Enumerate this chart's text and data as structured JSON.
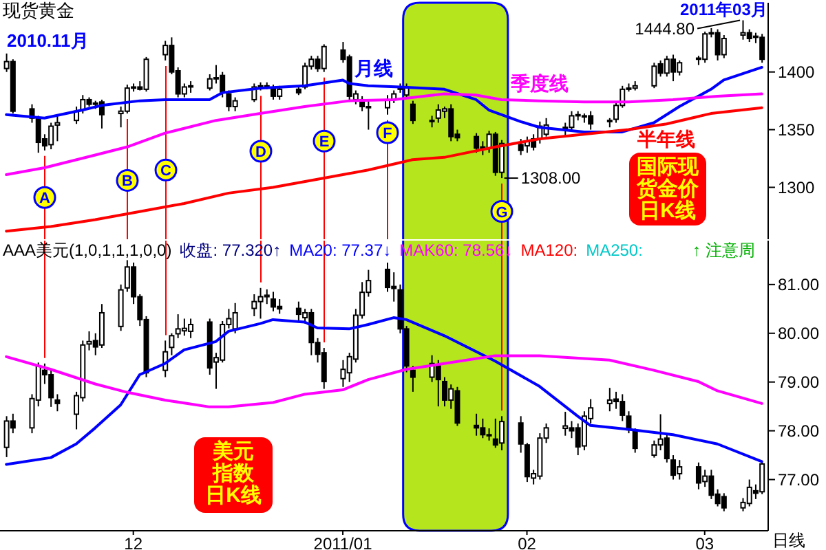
{
  "chart_data": [
    {
      "type": "candlestick",
      "title": "现货黄金",
      "color": "#000000",
      "x": [
        "2010-11-11",
        "2010-11-12",
        "2010-11-15",
        "2010-11-16",
        "2010-11-17",
        "2010-11-18",
        "2010-11-19",
        "2010-11-22",
        "2010-11-23",
        "2010-11-24",
        "2010-11-25",
        "2010-11-26",
        "2010-11-29",
        "2010-11-30",
        "2010-12-01",
        "2010-12-02",
        "2010-12-03",
        "2010-12-06",
        "2010-12-07",
        "2010-12-08",
        "2010-12-09",
        "2010-12-10",
        "2010-12-13",
        "2010-12-14",
        "2010-12-15",
        "2010-12-16",
        "2010-12-17",
        "2010-12-20",
        "2010-12-21",
        "2010-12-22",
        "2010-12-23",
        "2010-12-24",
        "2010-12-27",
        "2010-12-28",
        "2010-12-29",
        "2010-12-30",
        "2010-12-31",
        "2011-01-03",
        "2011-01-04",
        "2011-01-05",
        "2011-01-06",
        "2011-01-07",
        "2011-01-10",
        "2011-01-11",
        "2011-01-12",
        "2011-01-13",
        "2011-01-14",
        "2011-01-17",
        "2011-01-18",
        "2011-01-19",
        "2011-01-20",
        "2011-01-21",
        "2011-01-24",
        "2011-01-25",
        "2011-01-26",
        "2011-01-27",
        "2011-01-28",
        "2011-01-31",
        "2011-02-01",
        "2011-02-02",
        "2011-02-03",
        "2011-02-04",
        "2011-02-07",
        "2011-02-08",
        "2011-02-09",
        "2011-02-10",
        "2011-02-11",
        "2011-02-14",
        "2011-02-15",
        "2011-02-16",
        "2011-02-17",
        "2011-02-18",
        "2011-02-21",
        "2011-02-22",
        "2011-02-23",
        "2011-02-24",
        "2011-02-25",
        "2011-02-28",
        "2011-03-01",
        "2011-03-02",
        "2011-03-03",
        "2011-03-04",
        "2011-03-07",
        "2011-03-08",
        "2011-03-09",
        "2011-03-10"
      ],
      "ohlc": [
        [
          1403,
          1416,
          1400,
          1409
        ],
        [
          1409,
          1411,
          1364,
          1366
        ],
        [
          1368,
          1372,
          1356,
          1360
        ],
        [
          1360,
          1362,
          1330,
          1339
        ],
        [
          1342,
          1346,
          1332,
          1336
        ],
        [
          1337,
          1356,
          1333,
          1353
        ],
        [
          1354,
          1362,
          1340,
          1356
        ],
        [
          1358,
          1370,
          1355,
          1366
        ],
        [
          1367,
          1380,
          1364,
          1376
        ],
        [
          1376,
          1378,
          1370,
          1372
        ],
        [
          1372,
          1375,
          1368,
          1373
        ],
        [
          1374,
          1376,
          1351,
          1363
        ],
        [
          1364,
          1370,
          1352,
          1366
        ],
        [
          1366,
          1389,
          1364,
          1386
        ],
        [
          1387,
          1390,
          1383,
          1386
        ],
        [
          1387,
          1392,
          1384,
          1385
        ],
        [
          1385,
          1413,
          1383,
          1411
        ],
        [
          1415,
          1427,
          1410,
          1423
        ],
        [
          1423,
          1430,
          1398,
          1400
        ],
        [
          1401,
          1404,
          1378,
          1381
        ],
        [
          1381,
          1390,
          1378,
          1387
        ],
        [
          1387,
          1392,
          1382,
          1388
        ],
        [
          1386,
          1398,
          1384,
          1394
        ],
        [
          1394,
          1406,
          1390,
          1395
        ],
        [
          1397,
          1400,
          1378,
          1382
        ],
        [
          1381,
          1384,
          1366,
          1370
        ],
        [
          1370,
          1378,
          1366,
          1375
        ],
        [
          1376,
          1390,
          1374,
          1387
        ],
        [
          1387,
          1391,
          1384,
          1388
        ],
        [
          1388,
          1391,
          1385,
          1387
        ],
        [
          1386,
          1389,
          1376,
          1379
        ],
        [
          1379,
          1388,
          1376,
          1385
        ],
        [
          1385,
          1387,
          1380,
          1382
        ],
        [
          1387,
          1408,
          1385,
          1405
        ],
        [
          1405,
          1414,
          1402,
          1411
        ],
        [
          1411,
          1414,
          1400,
          1403
        ],
        [
          1403,
          1424,
          1400,
          1422
        ],
        [
          1419,
          1426,
          1408,
          1411
        ],
        [
          1413,
          1415,
          1376,
          1379
        ],
        [
          1376,
          1384,
          1372,
          1381
        ],
        [
          1376,
          1379,
          1366,
          1370
        ],
        [
          1370,
          1376,
          1350,
          1369
        ],
        [
          1369,
          1380,
          1363,
          1376
        ],
        [
          1376,
          1384,
          1373,
          1381
        ],
        [
          1385,
          1390,
          1382,
          1386
        ],
        [
          1380,
          1390,
          1377,
          1387
        ],
        [
          1372,
          1375,
          1355,
          1358
        ],
        [
          1358,
          1362,
          1352,
          1357
        ],
        [
          1360,
          1372,
          1356,
          1367
        ],
        [
          1366,
          1370,
          1360,
          1368
        ],
        [
          1368,
          1372,
          1340,
          1344
        ],
        [
          1346,
          1350,
          1340,
          1343
        ],
        [
          1344,
          1347,
          1330,
          1334
        ],
        [
          1334,
          1340,
          1328,
          1335
        ],
        [
          1334,
          1349,
          1330,
          1346
        ],
        [
          1346,
          1348,
          1310,
          1313
        ],
        [
          1313,
          1341,
          1308,
          1338
        ],
        [
          1337,
          1342,
          1328,
          1332
        ],
        [
          1336,
          1344,
          1330,
          1340
        ],
        [
          1342,
          1346,
          1332,
          1335
        ],
        [
          1342,
          1357,
          1338,
          1353
        ],
        [
          1346,
          1360,
          1344,
          1354
        ],
        [
          1352,
          1356,
          1344,
          1350
        ],
        [
          1352,
          1366,
          1348,
          1362
        ],
        [
          1362,
          1366,
          1358,
          1363
        ],
        [
          1362,
          1364,
          1356,
          1361
        ],
        [
          1362,
          1366,
          1350,
          1355
        ],
        [
          1357,
          1360,
          1352,
          1358
        ],
        [
          1359,
          1373,
          1356,
          1371
        ],
        [
          1371,
          1388,
          1369,
          1385
        ],
        [
          1385,
          1390,
          1383,
          1386
        ],
        [
          1386,
          1392,
          1384,
          1388
        ],
        [
          1388,
          1408,
          1386,
          1405
        ],
        [
          1407,
          1410,
          1396,
          1399
        ],
        [
          1399,
          1414,
          1396,
          1411
        ],
        [
          1411,
          1415,
          1392,
          1400
        ],
        [
          1400,
          1410,
          1397,
          1408
        ],
        [
          1411,
          1414,
          1406,
          1412
        ],
        [
          1411,
          1435,
          1408,
          1433
        ],
        [
          1433,
          1438,
          1430,
          1434
        ],
        [
          1434,
          1437,
          1410,
          1415
        ],
        [
          1415,
          1432,
          1412,
          1429
        ],
        [
          1432,
          1444.8,
          1428,
          1434
        ],
        [
          1434,
          1437,
          1426,
          1429
        ],
        [
          1430,
          1434,
          1425,
          1431
        ],
        [
          1430,
          1433,
          1408,
          1411
        ]
      ],
      "series": [
        {
          "type": "line",
          "name": "月线",
          "color": "#0000ff",
          "x": [
            "2010-11-11",
            "2010-11-17",
            "2010-11-23",
            "2010-11-26",
            "2010-12-02",
            "2010-12-06",
            "2010-12-13",
            "2010-12-15",
            "2010-12-21",
            "2010-12-28",
            "2011-01-03",
            "2011-01-04",
            "2011-01-07",
            "2011-01-12",
            "2011-01-19",
            "2011-01-24",
            "2011-01-26",
            "2011-01-31",
            "2011-02-03",
            "2011-02-10",
            "2011-02-16",
            "2011-02-21",
            "2011-02-25",
            "2011-03-02",
            "2011-03-04",
            "2011-03-10"
          ],
          "values": [
            1363,
            1360,
            1367,
            1371,
            1375,
            1376,
            1376,
            1382,
            1386,
            1388,
            1393,
            1390,
            1388,
            1387,
            1385,
            1376,
            1367,
            1357,
            1352,
            1348,
            1348,
            1356,
            1370,
            1385,
            1393,
            1404
          ]
        },
        {
          "type": "line",
          "name": "季度线",
          "color": "#ff00ff",
          "x": [
            "2010-11-11",
            "2010-11-17",
            "2010-11-25",
            "2010-11-30",
            "2010-12-06",
            "2010-12-14",
            "2010-12-21",
            "2010-12-28",
            "2011-01-04",
            "2011-01-11",
            "2011-01-19",
            "2011-01-24",
            "2011-01-28",
            "2011-02-03",
            "2011-02-10",
            "2011-02-17",
            "2011-02-24",
            "2011-03-03",
            "2011-03-10"
          ],
          "values": [
            1311,
            1317,
            1328,
            1335,
            1347,
            1358,
            1364,
            1370,
            1375,
            1376,
            1381,
            1380,
            1376,
            1375,
            1374,
            1374,
            1376,
            1379,
            1381
          ]
        },
        {
          "type": "line",
          "name": "半年线",
          "color": "#ff0000",
          "x": [
            "2010-11-11",
            "2010-11-18",
            "2010-11-25",
            "2010-12-02",
            "2010-12-09",
            "2010-12-16",
            "2010-12-23",
            "2010-12-30",
            "2011-01-07",
            "2011-01-14",
            "2011-01-19",
            "2011-01-27",
            "2011-02-03",
            "2011-02-10",
            "2011-02-17",
            "2011-02-23",
            "2011-03-02",
            "2011-03-10"
          ],
          "values": [
            1262,
            1266,
            1272,
            1279,
            1286,
            1295,
            1300,
            1307,
            1315,
            1324,
            1326,
            1335,
            1342,
            1346,
            1350,
            1355,
            1364,
            1369
          ]
        }
      ],
      "xlim": [
        "2010-11-10",
        "2011-03-11"
      ],
      "ylim": [
        1255,
        1460
      ],
      "yticks": [
        1300,
        1350,
        1400
      ],
      "tick_labels": "y",
      "ref_lines": [
        {
          "axis": "x",
          "value": "2010-11-17",
          "label": "A",
          "color": "#ff0000"
        },
        {
          "axis": "x",
          "value": "2010-11-30",
          "label": "B",
          "color": "#ff0000"
        },
        {
          "axis": "x",
          "value": "2010-12-06",
          "label": "C",
          "color": "#ff0000"
        },
        {
          "axis": "x",
          "value": "2010-12-21",
          "label": "D",
          "color": "#ff0000"
        },
        {
          "axis": "x",
          "value": "2010-12-31",
          "label": "E",
          "color": "#ff0000"
        },
        {
          "axis": "x",
          "value": "2011-01-10",
          "label": "F",
          "color": "#ff0000"
        },
        {
          "axis": "x",
          "value": "2011-01-28",
          "label": "G",
          "color": "#ff0000"
        }
      ],
      "bands": [
        {
          "axis": "x",
          "from": "2011-01-12T12:00",
          "to": "2011-01-29",
          "color": "#b5e61d"
        }
      ],
      "annotations": [
        "2010.11月",
        "2011年03月",
        {
          "text": "1444.80",
          "x": "2011-03-07",
          "y": 1444.8
        },
        {
          "text": "1308.00",
          "x": "2011-01-28",
          "y": 1308
        },
        "国际现货金价日K线"
      ]
    },
    {
      "type": "candlestick",
      "title": "AAA美元(1,0,1,1,1,0,0)",
      "color": "#000000",
      "x": [
        "2010-11-11",
        "2010-11-12",
        "2010-11-15",
        "2010-11-16",
        "2010-11-17",
        "2010-11-18",
        "2010-11-19",
        "2010-11-22",
        "2010-11-23",
        "2010-11-24",
        "2010-11-25",
        "2010-11-26",
        "2010-11-29",
        "2010-11-30",
        "2010-12-01",
        "2010-12-02",
        "2010-12-03",
        "2010-12-06",
        "2010-12-07",
        "2010-12-08",
        "2010-12-09",
        "2010-12-10",
        "2010-12-13",
        "2010-12-14",
        "2010-12-15",
        "2010-12-16",
        "2010-12-17",
        "2010-12-20",
        "2010-12-21",
        "2010-12-22",
        "2010-12-23",
        "2010-12-24",
        "2010-12-27",
        "2010-12-28",
        "2010-12-29",
        "2010-12-30",
        "2010-12-31",
        "2011-01-03",
        "2011-01-04",
        "2011-01-05",
        "2011-01-06",
        "2011-01-07",
        "2011-01-10",
        "2011-01-11",
        "2011-01-12",
        "2011-01-13",
        "2011-01-14",
        "2011-01-17",
        "2011-01-18",
        "2011-01-19",
        "2011-01-20",
        "2011-01-21",
        "2011-01-24",
        "2011-01-25",
        "2011-01-26",
        "2011-01-27",
        "2011-01-28",
        "2011-01-31",
        "2011-02-01",
        "2011-02-02",
        "2011-02-03",
        "2011-02-04",
        "2011-02-07",
        "2011-02-08",
        "2011-02-09",
        "2011-02-10",
        "2011-02-11",
        "2011-02-14",
        "2011-02-15",
        "2011-02-16",
        "2011-02-17",
        "2011-02-18",
        "2011-02-21",
        "2011-02-22",
        "2011-02-23",
        "2011-02-24",
        "2011-02-25",
        "2011-02-28",
        "2011-03-01",
        "2011-03-02",
        "2011-03-03",
        "2011-03-04",
        "2011-03-07",
        "2011-03-08",
        "2011-03-09",
        "2011-03-10"
      ],
      "ohlc": [
        [
          77.66,
          78.3,
          77.46,
          78.2
        ],
        [
          78.2,
          78.35,
          77.95,
          78.06
        ],
        [
          78.06,
          78.75,
          77.95,
          78.66
        ],
        [
          78.63,
          79.4,
          78.5,
          79.33
        ],
        [
          79.24,
          79.38,
          78.96,
          79.15
        ],
        [
          79.15,
          79.25,
          78.49,
          78.68
        ],
        [
          78.63,
          78.75,
          78.4,
          78.56
        ],
        [
          78.34,
          78.8,
          78.03,
          78.72
        ],
        [
          78.68,
          79.85,
          78.6,
          79.76
        ],
        [
          79.78,
          80.04,
          79.65,
          79.83
        ],
        [
          79.85,
          80,
          79.55,
          79.72
        ],
        [
          79.76,
          80.6,
          79.7,
          80.42
        ],
        [
          80.14,
          81,
          80.05,
          80.89
        ],
        [
          80.93,
          81.5,
          80.85,
          81.36
        ],
        [
          81.36,
          81.45,
          80.6,
          80.75
        ],
        [
          80.75,
          80.8,
          80.15,
          80.28
        ],
        [
          80.28,
          80.35,
          79.1,
          79.19
        ],
        [
          79.24,
          79.85,
          79.1,
          79.62
        ],
        [
          79.71,
          80,
          79.55,
          79.95
        ],
        [
          79.99,
          80.39,
          79.9,
          80.09
        ],
        [
          80.05,
          80.3,
          79.95,
          80.1
        ],
        [
          80.04,
          80.3,
          79.9,
          80.18
        ],
        [
          80.23,
          80.3,
          79.15,
          79.29
        ],
        [
          79.41,
          79.6,
          78.86,
          79.5
        ],
        [
          79.45,
          80.25,
          79.4,
          80.18
        ],
        [
          80.18,
          80.5,
          80.1,
          80.3
        ],
        [
          80.09,
          80.62,
          80,
          80.42
        ],
        [
          80.51,
          80.8,
          80.35,
          80.65
        ],
        [
          80.65,
          80.93,
          80.3,
          80.75
        ],
        [
          80.75,
          80.9,
          80.6,
          80.78
        ],
        [
          80.7,
          80.85,
          80.45,
          80.54
        ],
        [
          80.55,
          80.7,
          80.4,
          80.5
        ],
        [
          80.51,
          80.65,
          80.25,
          80.39
        ],
        [
          80.32,
          80.5,
          80.2,
          80.42
        ],
        [
          80.42,
          80.5,
          79.55,
          79.81
        ],
        [
          79.81,
          79.9,
          79.4,
          79.57
        ],
        [
          79.6,
          79.7,
          78.86,
          79.01
        ],
        [
          79.07,
          79.45,
          78.9,
          79.26
        ],
        [
          79.19,
          79.6,
          79,
          79.52
        ],
        [
          79.47,
          80.5,
          79.4,
          80.37
        ],
        [
          80.37,
          81.05,
          80.3,
          80.84
        ],
        [
          80.84,
          81.3,
          80.75,
          81.08
        ],
        [
          81.31,
          81.45,
          80.85,
          80.94
        ],
        [
          80.96,
          81.25,
          80.65,
          80.92
        ],
        [
          80.89,
          81,
          80,
          80.09
        ],
        [
          80.09,
          80.15,
          79.2,
          79.33
        ],
        [
          79.24,
          79.33,
          78.8,
          79.1
        ],
        [
          79.1,
          79.55,
          79,
          79.38
        ],
        [
          79.33,
          79.45,
          78.5,
          79.05
        ],
        [
          79.01,
          79.1,
          78.5,
          78.63
        ],
        [
          78.63,
          78.95,
          78.45,
          78.86
        ],
        [
          78.82,
          78.9,
          78.1,
          78.16
        ],
        [
          78.11,
          78.35,
          77.9,
          78.06
        ],
        [
          78.06,
          78.25,
          77.85,
          77.92
        ],
        [
          77.92,
          78.05,
          77.8,
          77.9
        ],
        [
          77.83,
          78.25,
          77.65,
          77.71
        ],
        [
          77.75,
          78.3,
          77.6,
          78.19
        ],
        [
          78.16,
          78.3,
          77.55,
          77.73
        ],
        [
          77.71,
          77.75,
          76.95,
          77.06
        ],
        [
          77.03,
          77.2,
          76.9,
          77.12
        ],
        [
          77.07,
          77.95,
          77,
          77.85
        ],
        [
          77.85,
          78.15,
          77.75,
          78.06
        ],
        [
          78.05,
          78.39,
          77.9,
          78.1
        ],
        [
          78.06,
          78.2,
          77.85,
          78
        ],
        [
          78.06,
          78.15,
          77.5,
          77.67
        ],
        [
          77.69,
          78.4,
          77.6,
          78.3
        ],
        [
          78.25,
          78.65,
          78.15,
          78.47
        ],
        [
          78.56,
          78.88,
          78.4,
          78.63
        ],
        [
          78.65,
          78.8,
          78.45,
          78.6
        ],
        [
          78.6,
          78.75,
          78.2,
          78.32
        ],
        [
          78.3,
          78.4,
          77.95,
          78.02
        ],
        [
          78,
          78.05,
          77.55,
          77.64
        ],
        [
          77.5,
          77.8,
          77.45,
          77.71
        ],
        [
          77.71,
          78.34,
          77.6,
          77.83
        ],
        [
          77.85,
          77.95,
          77.35,
          77.43
        ],
        [
          77.4,
          77.5,
          77,
          77.09
        ],
        [
          77.12,
          77.4,
          77,
          77.26
        ],
        [
          77.26,
          77.35,
          76.8,
          76.93
        ],
        [
          76.96,
          77.2,
          76.85,
          77.07
        ],
        [
          77.07,
          77.2,
          76.6,
          76.68
        ],
        [
          76.7,
          76.8,
          76.45,
          76.51
        ],
        [
          76.65,
          76.72,
          76.35,
          76.42
        ],
        [
          76.42,
          76.62,
          76.35,
          76.53
        ],
        [
          76.51,
          77,
          76.45,
          76.84
        ],
        [
          76.77,
          76.9,
          76.6,
          76.72
        ],
        [
          76.75,
          77.36,
          76.7,
          77.32
        ]
      ],
      "series": [
        {
          "type": "line",
          "name": "MA20: 77.37↓",
          "color": "#0000ff",
          "x": [
            "2010-11-11",
            "2010-11-18",
            "2010-11-22",
            "2010-11-25",
            "2010-11-29",
            "2010-12-02",
            "2010-12-06",
            "2010-12-09",
            "2010-12-14",
            "2010-12-16",
            "2010-12-21",
            "2010-12-23",
            "2010-12-28",
            "2010-12-30",
            "2011-01-04",
            "2011-01-07",
            "2011-01-11",
            "2011-01-13",
            "2011-01-19",
            "2011-01-27",
            "2011-02-03",
            "2011-02-09",
            "2011-02-11",
            "2011-02-17",
            "2011-02-24",
            "2011-03-03",
            "2011-03-10"
          ],
          "values": [
            77.31,
            77.45,
            77.73,
            78.06,
            78.53,
            79.15,
            79.38,
            79.66,
            79.83,
            80.04,
            80.2,
            80.28,
            80.23,
            80.11,
            80.09,
            80.18,
            80.32,
            80.28,
            79.95,
            79.43,
            78.91,
            78.3,
            78.11,
            78.03,
            77.92,
            77.73,
            77.37
          ]
        },
        {
          "type": "line",
          "name": "MAK60: 78.56↓",
          "color": "#ff00ff",
          "x": [
            "2010-11-11",
            "2010-11-18",
            "2010-11-25",
            "2010-11-30",
            "2010-12-06",
            "2010-12-13",
            "2010-12-16",
            "2010-12-23",
            "2010-12-28",
            "2011-01-03",
            "2011-01-07",
            "2011-01-13",
            "2011-01-19",
            "2011-01-27",
            "2011-02-03",
            "2011-02-14",
            "2011-02-21",
            "2011-02-28",
            "2011-03-03",
            "2011-03-10"
          ],
          "values": [
            79.52,
            79.26,
            78.96,
            78.79,
            78.63,
            78.49,
            78.49,
            78.58,
            78.75,
            78.84,
            79.05,
            79.26,
            79.38,
            79.54,
            79.54,
            79.45,
            79.24,
            79.01,
            78.82,
            78.56
          ]
        }
      ],
      "xlim": [
        "2010-11-10",
        "2011-03-11"
      ],
      "xticks": [
        {
          "value": "2010-12-01",
          "label": "12"
        },
        {
          "value": "2011-01-03",
          "label": "2011/01"
        },
        {
          "value": "2011-02-01",
          "label": "02"
        },
        {
          "value": "2011-03-01",
          "label": "03"
        }
      ],
      "ylim": [
        75.95,
        81.9
      ],
      "yticks": [
        {
          "value": 77,
          "label": "77.00"
        },
        {
          "value": 78,
          "label": "78.00"
        },
        {
          "value": 79,
          "label": "79.00"
        },
        {
          "value": 80,
          "label": "80.00"
        },
        {
          "value": 81,
          "label": "81.00"
        }
      ],
      "legend": "top",
      "ref_lines": [
        {
          "axis": "x",
          "value": "2010-11-17",
          "color": "#ff0000"
        },
        {
          "axis": "x",
          "value": "2010-12-06",
          "color": "#ff0000"
        },
        {
          "axis": "x",
          "value": "2010-12-21",
          "color": "#ff0000"
        },
        {
          "axis": "x",
          "value": "2010-12-31",
          "color": "#ff0000"
        },
        {
          "axis": "x",
          "value": "2011-01-28",
          "color": "#ff0000"
        }
      ],
      "bands": [
        {
          "axis": "x",
          "from": "2011-01-12T12:00",
          "to": "2011-01-29",
          "color": "#b5e61d"
        }
      ],
      "annotations": [
        "收盘: 77.320↑",
        "MA120:",
        "MA250:",
        "↑ 注意周",
        "美元指数日K线",
        "日线"
      ]
    }
  ]
}
